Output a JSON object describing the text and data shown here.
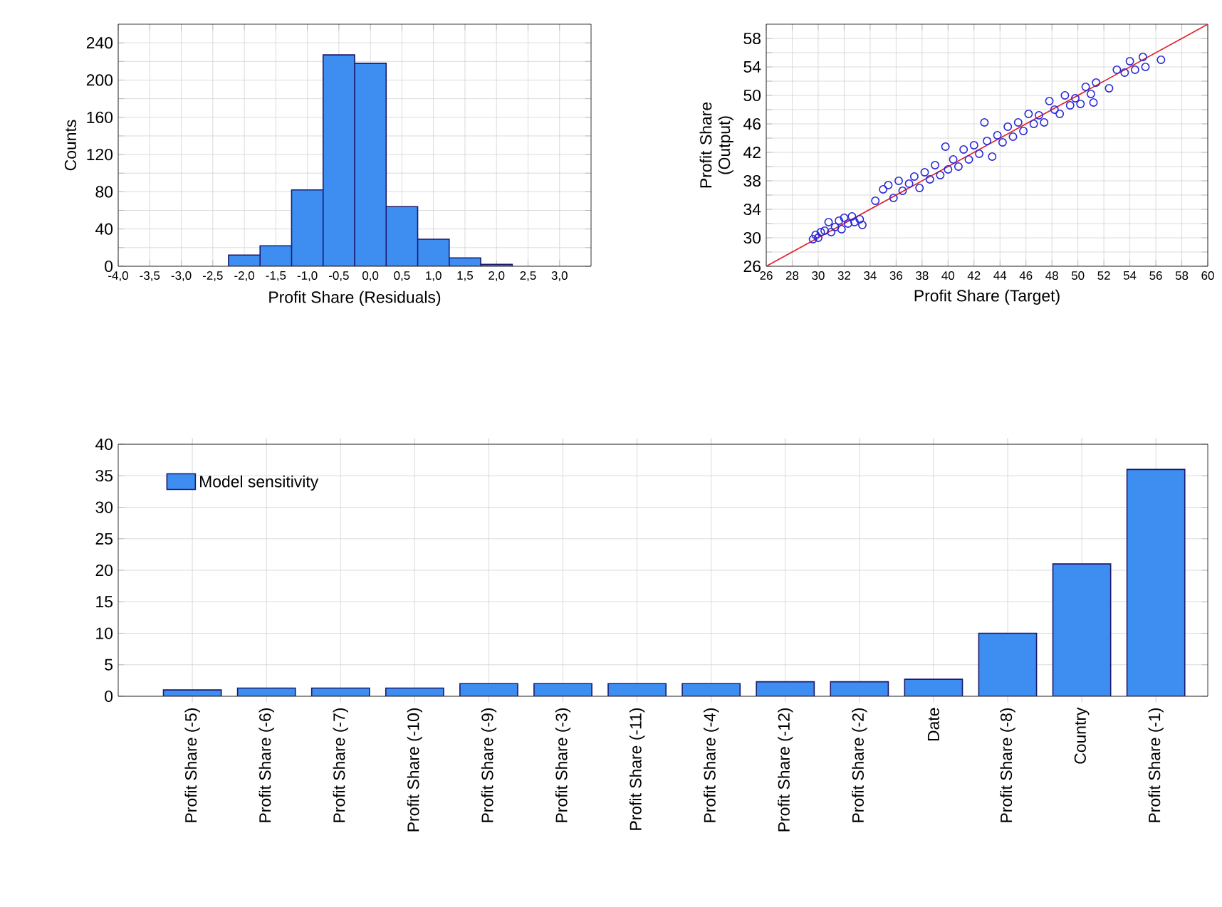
{
  "chart_data": [
    {
      "type": "histogram",
      "xlabel": "Profit Share (Residuals)",
      "ylabel": "Counts",
      "bins": [
        -2.25,
        -1.75,
        -1.25,
        -0.75,
        -0.25,
        0.25,
        0.75,
        1.25,
        1.75,
        2.25
      ],
      "values": [
        12,
        22,
        82,
        227,
        218,
        64,
        29,
        9,
        2
      ],
      "color": "#3d8ef0",
      "grid": true,
      "xlim": [
        -4,
        3.5
      ],
      "ylim": [
        0,
        260
      ],
      "xticks": [
        {
          "value": -4,
          "label": "-4,0"
        },
        {
          "value": -3.5,
          "label": "-3,5"
        },
        {
          "value": -3,
          "label": "-3,0"
        },
        {
          "value": -2.5,
          "label": "-2,5"
        },
        {
          "value": -2,
          "label": "-2,0"
        },
        {
          "value": -1.5,
          "label": "-1,5"
        },
        {
          "value": -1,
          "label": "-1,0"
        },
        {
          "value": -0.5,
          "label": "-0,5"
        },
        {
          "value": 0,
          "label": "0,0"
        },
        {
          "value": 0.5,
          "label": "0,5"
        },
        {
          "value": 1,
          "label": "1,0"
        },
        {
          "value": 1.5,
          "label": "1,5"
        },
        {
          "value": 2,
          "label": "2,0"
        },
        {
          "value": 2.5,
          "label": "2,5"
        },
        {
          "value": 3,
          "label": "3,0"
        }
      ],
      "yticks": [
        0,
        {
          "value": 20,
          "label": null
        },
        40,
        {
          "value": 60,
          "label": null
        },
        80,
        {
          "value": 100,
          "label": null
        },
        120,
        {
          "value": 140,
          "label": null
        },
        160,
        {
          "value": 180,
          "label": null
        },
        200,
        {
          "value": 220,
          "label": null
        },
        240
      ]
    },
    {
      "type": "scatter",
      "xlabel": "Profit Share (Target)",
      "ylabel": "Profit Share (Output)",
      "grid": true,
      "xlim": [
        26,
        60
      ],
      "ylim": [
        26,
        60
      ],
      "xticks": [
        26,
        28,
        30,
        32,
        34,
        36,
        38,
        40,
        42,
        44,
        46,
        48,
        50,
        52,
        54,
        56,
        58,
        60
      ],
      "yticks": [
        26,
        {
          "value": 28,
          "label": null
        },
        30,
        {
          "value": 32,
          "label": null
        },
        34,
        {
          "value": 36,
          "label": null
        },
        38,
        {
          "value": 40,
          "label": null
        },
        42,
        {
          "value": 44,
          "label": null
        },
        46,
        {
          "value": 48,
          "label": null
        },
        50,
        {
          "value": 52,
          "label": null
        },
        54,
        {
          "value": 56,
          "label": null
        },
        58
      ],
      "series": [
        {
          "type": "scatter",
          "color": "#2828d8",
          "marker": "circle",
          "x": [
            29.6,
            29.8,
            30.0,
            30.2,
            30.5,
            30.8,
            31.0,
            31.3,
            31.6,
            31.8,
            32.0,
            32.3,
            32.6,
            32.8,
            33.2,
            33.4,
            34.4,
            35.0,
            35.4,
            35.8,
            36.2,
            36.5,
            37.0,
            37.4,
            37.8,
            38.2,
            38.6,
            39.0,
            39.4,
            39.8,
            40.0,
            40.4,
            40.8,
            41.2,
            41.6,
            42.0,
            42.4,
            42.8,
            43.0,
            43.4,
            43.8,
            44.2,
            44.6,
            45.0,
            45.4,
            45.8,
            46.2,
            46.6,
            47.0,
            47.4,
            47.8,
            48.2,
            48.6,
            49.0,
            49.4,
            49.8,
            50.2,
            50.6,
            51.0,
            51.2,
            51.4,
            52.4,
            53.0,
            53.6,
            54.0,
            54.4,
            55.0,
            55.2,
            56.4
          ],
          "values": [
            29.8,
            30.4,
            30.0,
            30.8,
            31.0,
            32.2,
            30.8,
            31.5,
            32.4,
            31.2,
            32.8,
            32.0,
            33.0,
            32.2,
            32.6,
            31.8,
            35.2,
            36.8,
            37.4,
            35.6,
            38.0,
            36.6,
            37.6,
            38.6,
            37.0,
            39.2,
            38.2,
            40.2,
            38.8,
            42.8,
            39.6,
            41.0,
            40.0,
            42.4,
            41.0,
            43.0,
            41.8,
            46.2,
            43.6,
            41.4,
            44.4,
            43.4,
            45.6,
            44.2,
            46.2,
            45.0,
            47.4,
            46.0,
            47.2,
            46.2,
            49.2,
            48.0,
            47.4,
            50.0,
            48.6,
            49.6,
            48.8,
            51.2,
            50.2,
            49.0,
            51.8,
            51.0,
            53.6,
            53.2,
            54.8,
            53.6,
            55.4,
            54.0,
            55.0
          ]
        },
        {
          "type": "line",
          "color": "#e0202a",
          "x": [
            26,
            60
          ],
          "values": [
            26,
            60
          ]
        }
      ]
    },
    {
      "type": "bar",
      "grid": true,
      "legend": "top left",
      "ylim": [
        0,
        40
      ],
      "yticks": [
        0,
        5,
        10,
        15,
        20,
        25,
        30,
        35,
        40
      ],
      "categories": [
        "Profit Share (-5)",
        "Profit Share (-6)",
        "Profit Share (-7)",
        "Profit Share (-10)",
        "Profit Share (-9)",
        "Profit Share (-3)",
        "Profit Share (-11)",
        "Profit Share (-4)",
        "Profit Share (-12)",
        "Profit Share (-2)",
        "Date",
        "Profit Share (-8)",
        "Country",
        "Profit Share (-1)"
      ],
      "series": [
        {
          "name": "Model sensitivity",
          "color": "#3d8ef0",
          "values": [
            1.0,
            1.3,
            1.3,
            1.3,
            2.0,
            2.0,
            2.0,
            2.0,
            2.3,
            2.3,
            2.7,
            10,
            21,
            36
          ]
        }
      ]
    }
  ]
}
